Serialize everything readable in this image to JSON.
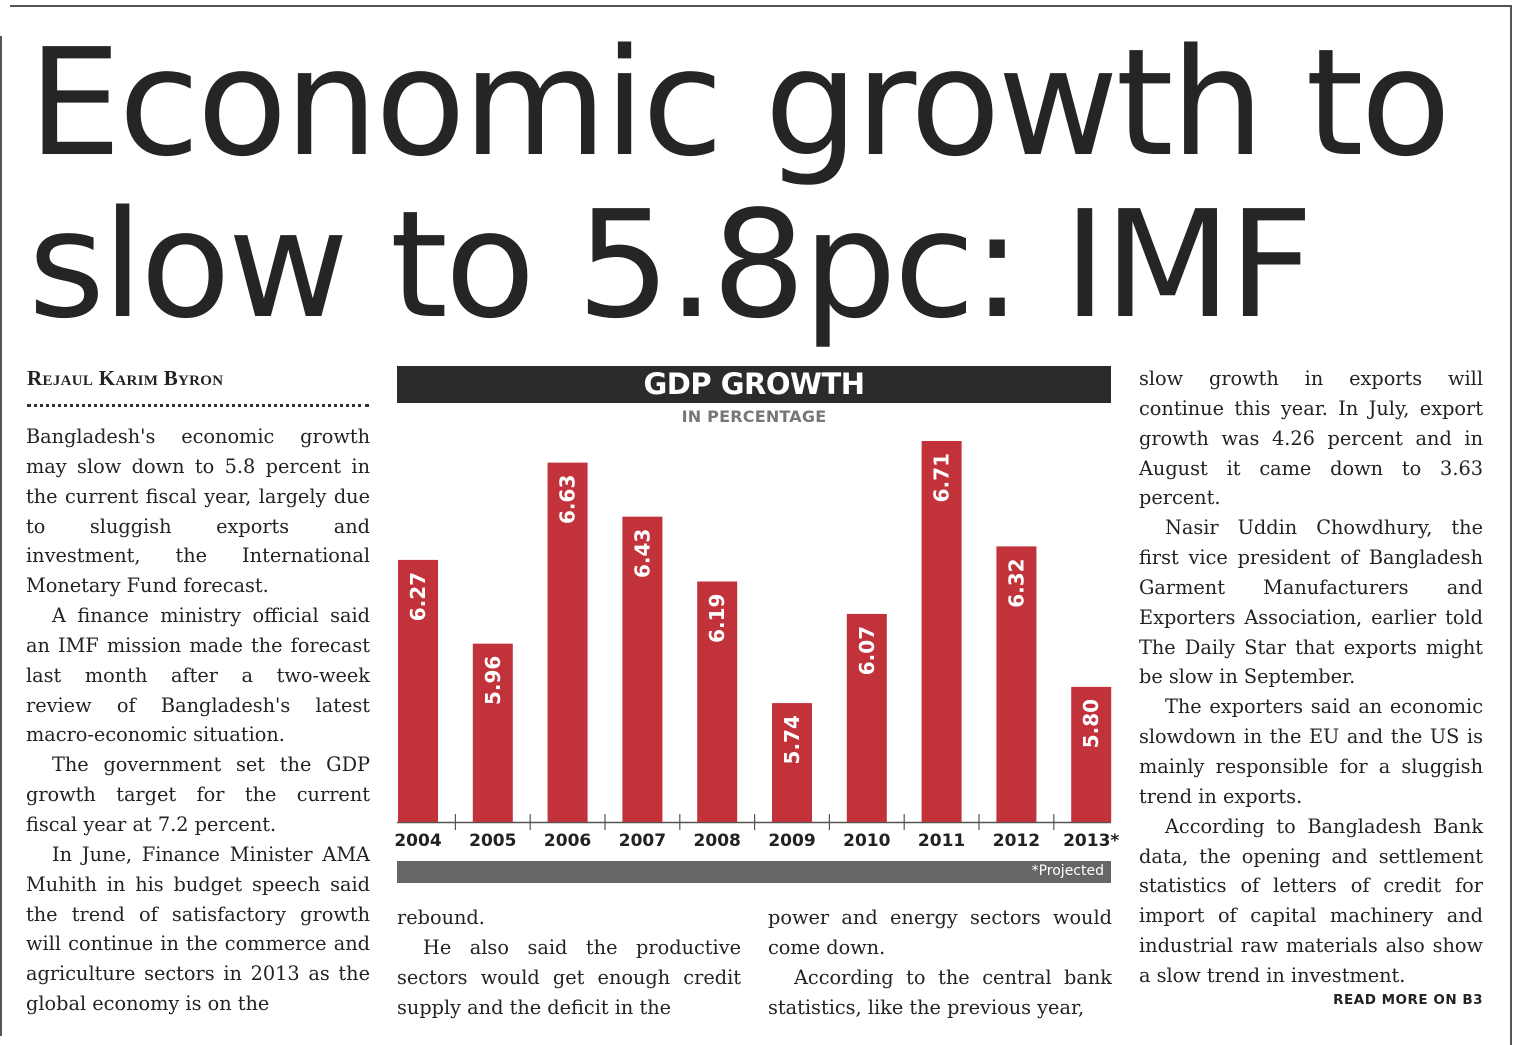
{
  "headline": {
    "line1": "Economic growth to",
    "line2": "slow to 5.8pc: IMF"
  },
  "byline": "Rejaul Karim Byron",
  "col1": [
    "Bangladesh's economic growth may slow down to 5.8 percent in the current fiscal year, largely due to sluggish exports and investment, the International Monetary Fund forecast.",
    "A finance ministry official said an IMF mission made the forecast last month after a two-week review of Bangladesh's latest macro-economic situation.",
    "The government set the GDP growth target for the current fiscal year at 7.2 percent.",
    "In June, Finance Minister AMA Muhith in his budget speech said the trend of satisfactory growth will continue in the commerce and agriculture sectors in 2013 as the global economy is on the"
  ],
  "col2": [
    "rebound.",
    "He also said the productive sectors would get enough credit supply and the deficit in the"
  ],
  "col3": [
    "power and energy sectors would come down.",
    "According to the central bank statistics, like the previous year,"
  ],
  "col4": [
    "slow growth in exports will continue this year. In July, export growth was 4.26 percent and in August it came down to 3.63 percent.",
    "Nasir Uddin Chowdhury, the first vice president of Bangladesh Garment Manufacturers and Exporters Association, earlier told The Daily Star that exports might be slow in September.",
    "The exporters said an economic slowdown in the EU and the US is mainly responsible for a sluggish trend in exports.",
    "According to Bangladesh Bank data, the opening and settlement statistics of letters of credit for import of capital machinery and industrial raw materials also show a slow trend in investment."
  ],
  "read_more": "READ MORE ON B3",
  "chart_data": {
    "type": "bar",
    "title": "GDP GROWTH",
    "subtitle": "IN PERCENTAGE",
    "categories": [
      "2004",
      "2005",
      "2006",
      "2007",
      "2008",
      "2009",
      "2010",
      "2011",
      "2012",
      "2013*"
    ],
    "values": [
      6.27,
      5.96,
      6.63,
      6.43,
      6.19,
      5.74,
      6.07,
      6.71,
      6.32,
      5.8
    ],
    "value_labels": [
      "6.27",
      "5.96",
      "6.63",
      "6.43",
      "6.19",
      "5.74",
      "6.07",
      "6.71",
      "6.32",
      "5.80"
    ],
    "footnote": "*Projected",
    "bar_color": "#c1323a",
    "title_bg": "#2b2b2b",
    "footnote_bg": "#666666",
    "grid": false,
    "value_labels_rotated": true
  }
}
